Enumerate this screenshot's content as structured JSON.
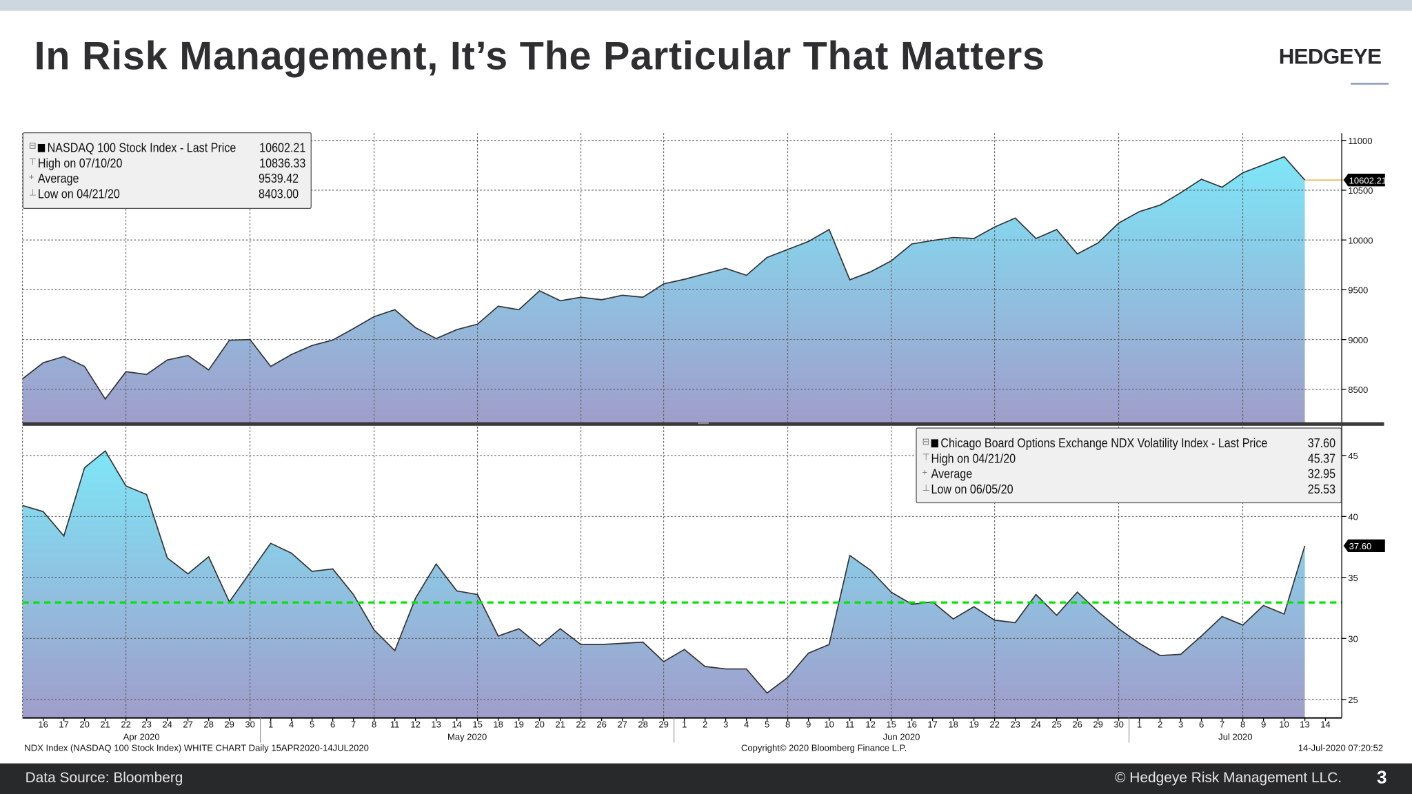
{
  "header": {
    "title": "In Risk Management, It’s The Particular That Matters",
    "logo": "HEDGEYE"
  },
  "footer": {
    "source": "Data Source: Bloomberg",
    "copyright": "© Hedgeye Risk Management LLC.",
    "page": "3"
  },
  "bloomberg": {
    "chart_info": "NDX Index (NASDAQ 100 Stock Index) WHITE CHART  Daily 15APR2020-14JUL2020",
    "copyright": "Copyright© 2020 Bloomberg Finance L.P.",
    "timestamp": "14-Jul-2020 07:20:52"
  },
  "colors": {
    "fill_top": "#7ee6f7",
    "fill_bottom": "#a09dca",
    "line": "#333333",
    "average_line": "#00e600",
    "last_price_line": "#f0a030"
  },
  "x_axis": {
    "tick_labels": [
      "16",
      "17",
      "20",
      "21",
      "22",
      "23",
      "24",
      "27",
      "28",
      "29",
      "30",
      "1",
      "4",
      "5",
      "6",
      "7",
      "8",
      "11",
      "12",
      "13",
      "14",
      "15",
      "18",
      "19",
      "20",
      "21",
      "22",
      "26",
      "27",
      "28",
      "29",
      "1",
      "2",
      "3",
      "4",
      "5",
      "8",
      "9",
      "10",
      "11",
      "12",
      "15",
      "16",
      "17",
      "18",
      "19",
      "22",
      "23",
      "24",
      "25",
      "26",
      "29",
      "30",
      "1",
      "2",
      "3",
      "6",
      "7",
      "8",
      "9",
      "10",
      "13",
      "14"
    ],
    "months": [
      "Apr 2020",
      "May 2020",
      "Jun 2020",
      "Jul 2020"
    ]
  },
  "chart_data": [
    {
      "type": "area",
      "legend": {
        "series": "NASDAQ 100 Stock Index - Last Price",
        "last": "10602.21",
        "high_label": "High on 07/10/20",
        "high": "10836.33",
        "avg_label": "Average",
        "avg": "9539.42",
        "low_label": "Low on 04/21/20",
        "low": "8403.00"
      },
      "last_price_tag": "10602.21",
      "yticks": [
        8500,
        9000,
        9500,
        10000,
        10500,
        11000
      ],
      "ylim": [
        8161,
        11072
      ],
      "y_axis_side": "right",
      "grid": true,
      "values": [
        8605,
        8767,
        8830,
        8730,
        8403,
        8677,
        8650,
        8795,
        8840,
        8695,
        8993,
        9000,
        8730,
        8850,
        8940,
        8995,
        9110,
        9230,
        9300,
        9120,
        9010,
        9100,
        9155,
        9335,
        9300,
        9490,
        9390,
        9425,
        9400,
        9445,
        9425,
        9560,
        9605,
        9660,
        9715,
        9645,
        9825,
        9905,
        9985,
        10105,
        9600,
        9680,
        9790,
        9960,
        9995,
        10025,
        10015,
        10130,
        10220,
        10015,
        10105,
        9860,
        9970,
        10170,
        10285,
        10350,
        10475,
        10610,
        10530,
        10675,
        10755,
        10836,
        10602.21
      ]
    },
    {
      "type": "area",
      "legend": {
        "series": "Chicago Board Options Exchange NDX Volatility Index - Last Price",
        "last": "37.60",
        "high_label": "High on 04/21/20",
        "high": "45.37",
        "avg_label": "Average",
        "avg": "32.95",
        "low_label": "Low on 06/05/20",
        "low": "25.53"
      },
      "last_price_tag": "37.60",
      "average": 32.95,
      "yticks": [
        25,
        30,
        35,
        40,
        45
      ],
      "ylim": [
        23.52,
        47.36
      ],
      "y_axis_side": "right",
      "grid": true,
      "values": [
        40.9,
        40.4,
        38.4,
        44.0,
        45.37,
        42.5,
        41.8,
        36.6,
        35.3,
        36.7,
        33.0,
        35.4,
        37.8,
        37.0,
        35.5,
        35.7,
        33.6,
        30.7,
        29.0,
        33.3,
        36.1,
        33.9,
        33.6,
        30.2,
        30.8,
        29.4,
        30.8,
        29.5,
        29.5,
        29.6,
        29.7,
        28.1,
        29.1,
        27.7,
        27.5,
        27.5,
        25.53,
        26.8,
        28.8,
        29.5,
        36.8,
        35.6,
        33.8,
        32.8,
        33.0,
        31.6,
        32.6,
        31.5,
        31.3,
        33.6,
        31.9,
        33.8,
        32.2,
        30.8,
        29.6,
        28.6,
        28.7,
        30.2,
        31.8,
        31.1,
        32.7,
        32.0,
        37.6
      ]
    }
  ]
}
